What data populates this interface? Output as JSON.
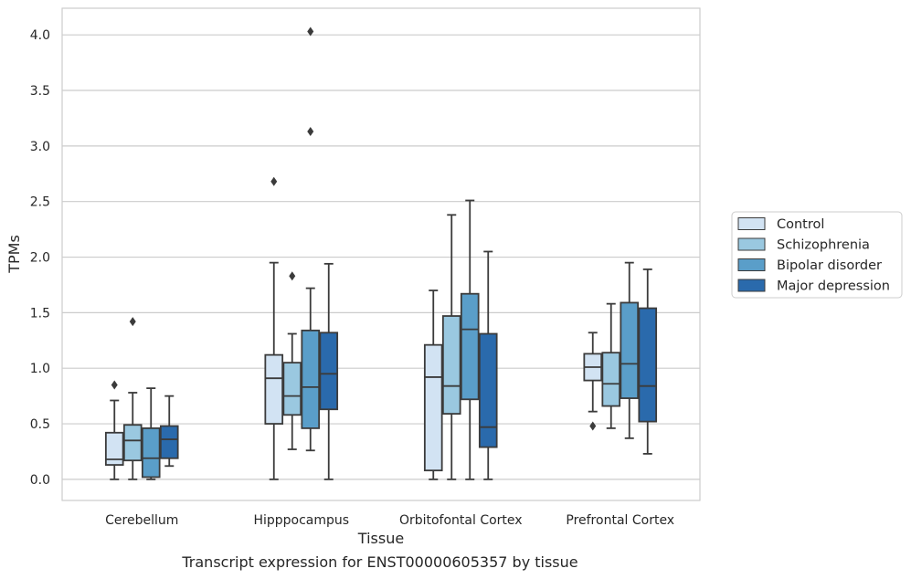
{
  "chart_data": {
    "type": "box",
    "xlabel": "Tissue",
    "ylabel": "TPMs",
    "caption": "Transcript expression for ENST00000605357 by tissue",
    "ylim": [
      -0.19,
      4.24
    ],
    "yticks": [
      "0.0",
      "0.5",
      "1.0",
      "1.5",
      "2.0",
      "2.5",
      "3.0",
      "3.5",
      "4.0"
    ],
    "grid": "horizontal",
    "legend_position": "right",
    "categories": [
      "Cerebellum",
      "Hipppocampus",
      "Orbitofontal Cortex",
      "Prefrontal Cortex"
    ],
    "series": [
      {
        "name": "Control",
        "color": "#d2e3f3",
        "boxes": [
          {
            "whislo": 0.0,
            "q1": 0.13,
            "med": 0.18,
            "q3": 0.42,
            "whishi": 0.71,
            "fliers": [
              0.85
            ]
          },
          {
            "whislo": 0.0,
            "q1": 0.5,
            "med": 0.91,
            "q3": 1.12,
            "whishi": 1.95,
            "fliers": [
              2.68
            ]
          },
          {
            "whislo": 0.0,
            "q1": 0.08,
            "med": 0.92,
            "q3": 1.21,
            "whishi": 1.7,
            "fliers": []
          },
          {
            "whislo": 0.61,
            "q1": 0.89,
            "med": 1.01,
            "q3": 1.13,
            "whishi": 1.32,
            "fliers": [
              0.48
            ]
          }
        ]
      },
      {
        "name": "Schizophrenia",
        "color": "#9ac8e0",
        "boxes": [
          {
            "whislo": 0.0,
            "q1": 0.17,
            "med": 0.35,
            "q3": 0.49,
            "whishi": 0.78,
            "fliers": [
              1.42
            ]
          },
          {
            "whislo": 0.27,
            "q1": 0.58,
            "med": 0.75,
            "q3": 1.05,
            "whishi": 1.31,
            "fliers": [
              1.83
            ]
          },
          {
            "whislo": 0.0,
            "q1": 0.59,
            "med": 0.84,
            "q3": 1.47,
            "whishi": 2.38,
            "fliers": []
          },
          {
            "whislo": 0.46,
            "q1": 0.66,
            "med": 0.86,
            "q3": 1.14,
            "whishi": 1.58,
            "fliers": []
          }
        ]
      },
      {
        "name": "Bipolar disorder",
        "color": "#5a9ec9",
        "boxes": [
          {
            "whislo": 0.0,
            "q1": 0.02,
            "med": 0.19,
            "q3": 0.46,
            "whishi": 0.82,
            "fliers": []
          },
          {
            "whislo": 0.26,
            "q1": 0.46,
            "med": 0.83,
            "q3": 1.34,
            "whishi": 1.72,
            "fliers": [
              3.13,
              4.03
            ]
          },
          {
            "whislo": 0.0,
            "q1": 0.72,
            "med": 1.35,
            "q3": 1.67,
            "whishi": 2.51,
            "fliers": []
          },
          {
            "whislo": 0.37,
            "q1": 0.73,
            "med": 1.04,
            "q3": 1.59,
            "whishi": 1.95,
            "fliers": []
          }
        ]
      },
      {
        "name": "Major depression",
        "color": "#2a6aac",
        "boxes": [
          {
            "whislo": 0.12,
            "q1": 0.19,
            "med": 0.36,
            "q3": 0.48,
            "whishi": 0.75,
            "fliers": []
          },
          {
            "whislo": 0.0,
            "q1": 0.63,
            "med": 0.95,
            "q3": 1.32,
            "whishi": 1.94,
            "fliers": []
          },
          {
            "whislo": 0.0,
            "q1": 0.29,
            "med": 0.47,
            "q3": 1.31,
            "whishi": 2.05,
            "fliers": []
          },
          {
            "whislo": 0.23,
            "q1": 0.52,
            "med": 0.84,
            "q3": 1.54,
            "whishi": 1.89,
            "fliers": []
          }
        ]
      }
    ]
  }
}
